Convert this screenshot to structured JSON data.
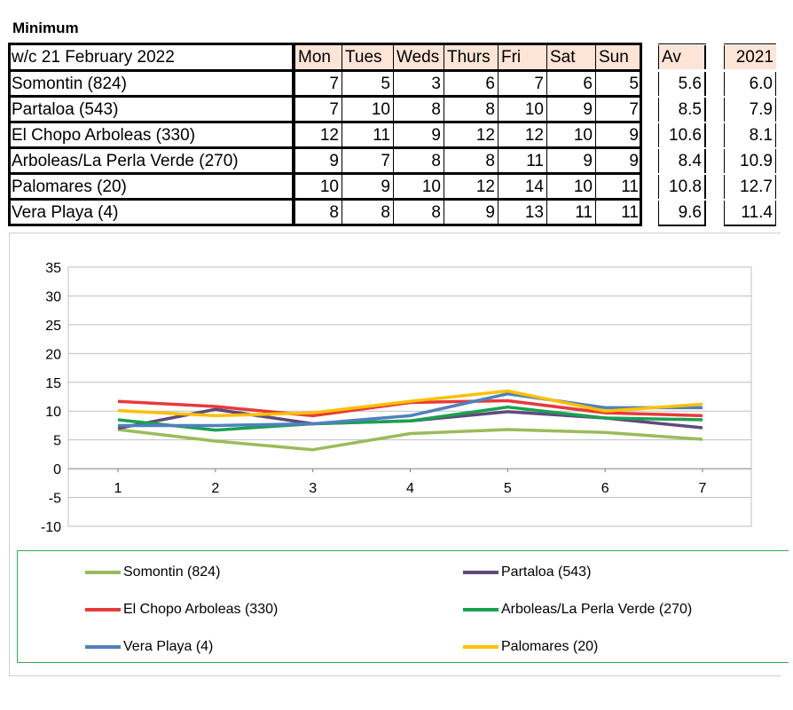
{
  "title": "Minimum",
  "table": {
    "week_label": "w/c 21 February 2022",
    "day_headers": [
      "Mon",
      "Tues",
      "Weds",
      "Thurs",
      "Fri",
      "Sat",
      "Sun"
    ],
    "av_header": "Av",
    "prev_header": "2021",
    "rows": [
      {
        "name": "Somontin (824)",
        "values": [
          "7",
          "5",
          "3",
          "6",
          "7",
          "6",
          "5"
        ],
        "av": "5.6",
        "prev": "6.0"
      },
      {
        "name": "Partaloa (543)",
        "values": [
          "7",
          "10",
          "8",
          "8",
          "10",
          "9",
          "7"
        ],
        "av": "8.5",
        "prev": "7.9"
      },
      {
        "name": "El Chopo Arboleas (330)",
        "values": [
          "12",
          "11",
          "9",
          "12",
          "12",
          "10",
          "9"
        ],
        "av": "10.6",
        "prev": "8.1"
      },
      {
        "name": "Arboleas/La Perla Verde (270)",
        "values": [
          "9",
          "7",
          "8",
          "8",
          "11",
          "9",
          "9"
        ],
        "av": "8.4",
        "prev": "10.9"
      },
      {
        "name": "Palomares (20)",
        "values": [
          "10",
          "9",
          "10",
          "12",
          "14",
          "10",
          "11"
        ],
        "av": "10.8",
        "prev": "12.7"
      },
      {
        "name": "Vera Playa (4)",
        "values": [
          "8",
          "8",
          "8",
          "9",
          "13",
          "11",
          "11"
        ],
        "av": "9.6",
        "prev": "11.4"
      }
    ],
    "header_fill": "#fce4d6"
  },
  "chart_data": {
    "type": "line",
    "x": [
      1,
      2,
      3,
      4,
      5,
      6,
      7
    ],
    "x_tick_labels": [
      "1",
      "2",
      "3",
      "4",
      "5",
      "6",
      "7"
    ],
    "ylim": [
      -10,
      35
    ],
    "y_ticks": [
      35,
      30,
      25,
      20,
      15,
      10,
      5,
      0,
      -5,
      -10
    ],
    "y_tick_labels": [
      "35",
      "30",
      "25",
      "20",
      "15",
      "10",
      "5",
      "0",
      "-5",
      "-10"
    ],
    "grid": true,
    "legend_position": "bottom",
    "series": [
      {
        "name": "Somontin (824)",
        "color": "#9bbb59",
        "values": [
          6.8,
          4.8,
          3.3,
          6.1,
          6.8,
          6.3,
          5.1
        ]
      },
      {
        "name": "Partaloa (543)",
        "color": "#604a7b",
        "values": [
          7.0,
          10.3,
          7.8,
          8.3,
          9.9,
          8.8,
          7.1
        ]
      },
      {
        "name": "El Chopo Arboleas (330)",
        "color": "#e83a3a",
        "values": [
          11.7,
          10.8,
          9.2,
          11.5,
          11.8,
          9.7,
          9.2
        ]
      },
      {
        "name": "Arboleas/La Perla Verde (270)",
        "color": "#1aa150",
        "values": [
          8.5,
          6.7,
          7.8,
          8.3,
          10.7,
          8.8,
          8.5
        ]
      },
      {
        "name": "Vera Playa (4)",
        "color": "#4f81bd",
        "values": [
          7.5,
          7.5,
          7.8,
          9.2,
          13.0,
          10.6,
          10.6
        ]
      },
      {
        "name": "Palomares (20)",
        "color": "#ffc000",
        "values": [
          10.1,
          9.2,
          9.7,
          11.7,
          13.5,
          10.0,
          11.2
        ]
      }
    ],
    "legend_order": [
      0,
      1,
      2,
      3,
      4,
      5
    ]
  }
}
